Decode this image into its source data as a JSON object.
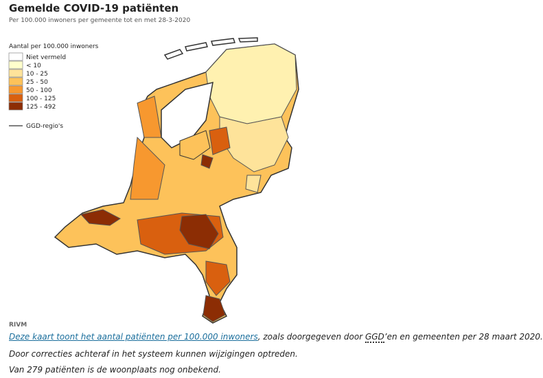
{
  "header": {
    "title": "Gemelde COVID-19 patiënten",
    "subtitle": "Per 100.000 inwoners per gemeente tot en met 28-3-2020"
  },
  "legend": {
    "title": "Aantal per 100.000 inwoners",
    "items": [
      {
        "label": "Niet vermeld",
        "color": "#ffffff"
      },
      {
        "label": "< 10",
        "color": "#ffffcc"
      },
      {
        "label": "10 - 25",
        "color": "#fee39a"
      },
      {
        "label": "25 - 50",
        "color": "#fdc25a"
      },
      {
        "label": "50 - 100",
        "color": "#f7982f"
      },
      {
        "label": "100 - 125",
        "color": "#d9600f"
      },
      {
        "label": "125 - 492",
        "color": "#8c2d04"
      }
    ],
    "line_label": "GGD-regio's"
  },
  "source": "RIVM",
  "caption": {
    "link": "Deze kaart toont het aantal patiënten per 100.000 inwoners",
    "text_1": ", zoals doorgegeven door ",
    "abbr": "GGD",
    "text_2": "’en en gemeenten per 28 maart 2020.",
    "line_2": "Door correcties achteraf in het systeem kunnen wijzigingen optreden.",
    "line_3": "Van 279 patiënten is de woonplaats nog onbekend."
  }
}
